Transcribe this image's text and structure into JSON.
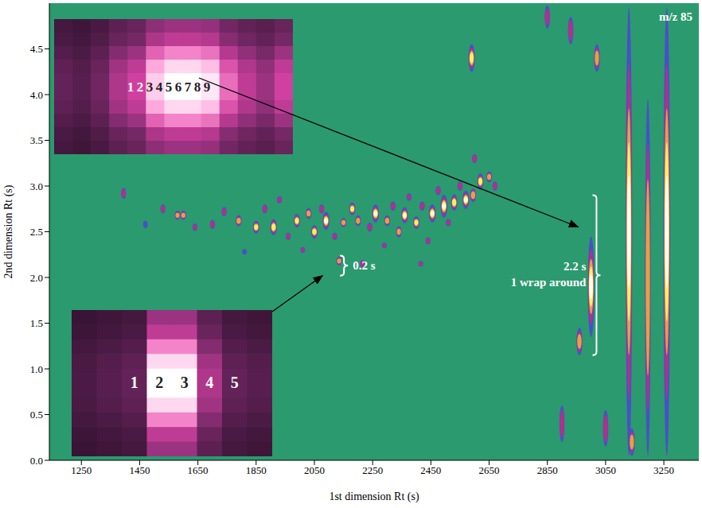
{
  "chart_data": {
    "type": "scatter",
    "title": "m/z 85",
    "x_label": "1st dimension Rt (s)",
    "y_label": "2nd dimension Rt (s)",
    "xlim": [
      1140,
      3370
    ],
    "ylim": [
      0,
      5.0
    ],
    "xticks": [
      1250,
      1450,
      1650,
      1850,
      2050,
      2250,
      2450,
      2650,
      2850,
      3050,
      3250
    ],
    "yticks": [
      {
        "value": 0,
        "label": "0.0"
      },
      0.5,
      {
        "value": 1,
        "label": "1.0"
      },
      1.5,
      {
        "value": 2,
        "label": "2.0"
      },
      2.5,
      {
        "value": 3,
        "label": "3.0"
      },
      3.5,
      {
        "value": 4,
        "label": "4.0"
      },
      4.5
    ],
    "grid": false,
    "peaks": {
      "x": [
        1395,
        1470,
        1530,
        1580,
        1600,
        1640,
        1700,
        1740,
        1790,
        1810,
        1850,
        1880,
        1910,
        1930,
        1960,
        1990,
        2010,
        2030,
        2050,
        2075,
        2090,
        2120,
        2135,
        2150,
        2180,
        2200,
        2215,
        2240,
        2260,
        2290,
        2300,
        2320,
        2340,
        2360,
        2375,
        2400,
        2415,
        2420,
        2440,
        2455,
        2475,
        2495,
        2510,
        2530,
        2550,
        2570,
        2595,
        2600,
        2590,
        2620,
        2650,
        2670,
        2850,
        2930,
        2900,
        2960,
        3000,
        3020,
        3050,
        3130,
        3140,
        3195,
        3260
      ],
      "y": [
        2.92,
        2.58,
        2.75,
        2.68,
        2.68,
        2.55,
        2.58,
        2.72,
        2.62,
        2.28,
        2.55,
        2.75,
        2.55,
        2.85,
        2.45,
        2.62,
        2.3,
        2.7,
        2.5,
        2.75,
        2.62,
        2.45,
        2.18,
        2.6,
        2.75,
        2.62,
        2.15,
        2.55,
        2.7,
        2.35,
        2.62,
        2.78,
        2.5,
        2.68,
        2.88,
        2.6,
        2.15,
        2.78,
        2.4,
        2.7,
        2.95,
        2.78,
        2.6,
        2.82,
        3.0,
        2.85,
        2.9,
        3.3,
        4.4,
        3.05,
        3.1,
        3.0,
        4.85,
        4.7,
        0.4,
        1.3,
        1.9,
        4.4,
        0.35,
        2.5,
        0.2,
        2.0,
        2.5
      ],
      "width": [
        0.12,
        0.08,
        0.1,
        0.1,
        0.1,
        0.08,
        0.1,
        0.1,
        0.12,
        0.06,
        0.14,
        0.1,
        0.18,
        0.08,
        0.08,
        0.15,
        0.06,
        0.12,
        0.15,
        0.1,
        0.2,
        0.08,
        0.1,
        0.1,
        0.14,
        0.12,
        0.08,
        0.1,
        0.2,
        0.06,
        0.12,
        0.1,
        0.12,
        0.18,
        0.08,
        0.14,
        0.06,
        0.1,
        0.08,
        0.2,
        0.1,
        0.25,
        0.08,
        0.18,
        0.1,
        0.2,
        0.15,
        0.1,
        0.3,
        0.18,
        0.12,
        0.1,
        0.25,
        0.3,
        0.4,
        0.3,
        1.1,
        0.3,
        0.4,
        4.9,
        0.3,
        3.9,
        4.9
      ],
      "intensity": [
        0.35,
        0.25,
        0.3,
        0.55,
        0.6,
        0.3,
        0.35,
        0.4,
        0.7,
        0.25,
        0.8,
        0.45,
        0.85,
        0.35,
        0.3,
        0.75,
        0.3,
        0.6,
        0.85,
        0.4,
        0.95,
        0.35,
        0.55,
        0.6,
        0.75,
        0.55,
        0.45,
        0.5,
        0.95,
        0.3,
        0.7,
        0.5,
        0.55,
        0.9,
        0.35,
        0.75,
        0.4,
        0.5,
        0.3,
        0.95,
        0.45,
        1.0,
        0.35,
        0.85,
        0.5,
        0.95,
        0.7,
        0.4,
        0.8,
        0.75,
        0.55,
        0.4,
        0.5,
        0.5,
        0.4,
        0.7,
        0.9,
        0.6,
        0.5,
        0.9,
        0.6,
        0.6,
        1.0
      ]
    },
    "annotations": [
      {
        "text": [
          "0.2 s"
        ],
        "x": 2138,
        "y0": 2.02,
        "y1": 2.24
      },
      {
        "text": [
          "2.2 s",
          "1 wrap around"
        ],
        "x": 3005,
        "y0": 1.15,
        "y1": 2.9
      }
    ],
    "insets": [
      {
        "labels": [
          "1",
          "2",
          "3",
          "4",
          "5",
          "6",
          "7",
          "8",
          "9"
        ],
        "cells": [
          0.25,
          0.2,
          0.3,
          0.5,
          0.6,
          0.9,
          1.0,
          1.0,
          0.95,
          0.7,
          0.55,
          0.45,
          0.6
        ]
      },
      {
        "labels": [
          "1",
          "2",
          "3",
          "4",
          "5"
        ],
        "cells": [
          0.15,
          0.2,
          0.25,
          1.0,
          1.0,
          0.5,
          0.25,
          0.2
        ]
      }
    ]
  }
}
